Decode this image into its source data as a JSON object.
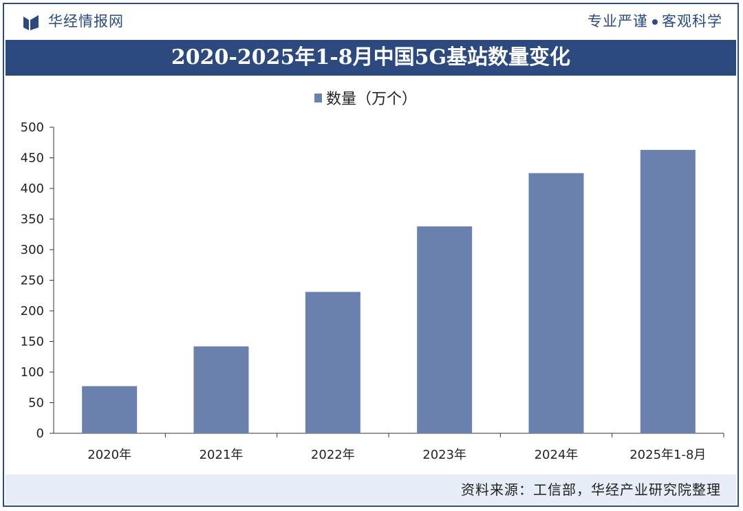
{
  "header": {
    "brand_name": "华经情报网",
    "slogan_left": "专业严谨",
    "slogan_right": "客观科学"
  },
  "footer": {
    "source_note": "资料来源：工信部，华经产业研究院整理"
  },
  "colors": {
    "bar": "#6a80ad",
    "title_bar": "#2c4a7e",
    "brand": "#2d4a7a",
    "footer_bg": "#e6edf7"
  },
  "chart_data": {
    "type": "bar",
    "title": "2020-2025年1-8月中国5G基站数量变化",
    "categories": [
      "2020年",
      "2021年",
      "2022年",
      "2023年",
      "2024年",
      "2025年1-8月"
    ],
    "series": [
      {
        "name": "数量（万个）",
        "values": [
          77,
          142,
          231,
          338,
          425,
          463
        ]
      }
    ],
    "ylim": [
      0,
      500
    ],
    "yticks": [
      0,
      50,
      100,
      150,
      200,
      250,
      300,
      350,
      400,
      450,
      500
    ],
    "grid": false,
    "legend": "top-center"
  }
}
